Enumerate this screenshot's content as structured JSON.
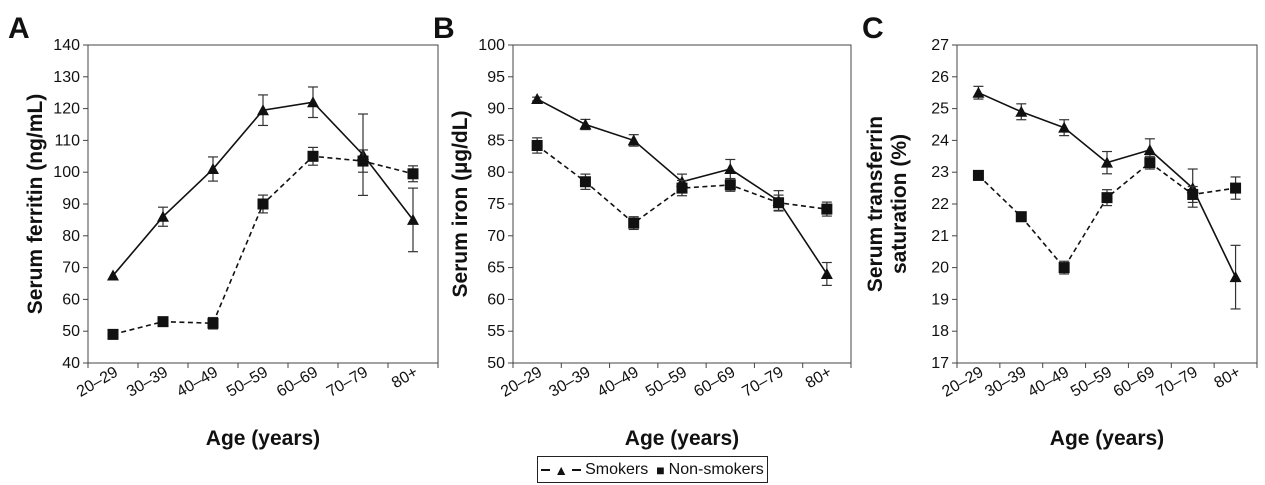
{
  "legend": {
    "smokers_label": "Smokers",
    "nonsmokers_label": "Non-smokers"
  },
  "chart_data": [
    {
      "type": "line",
      "panel_label": "A",
      "categories": [
        "20–29",
        "30–39",
        "40–49",
        "50–59",
        "60–69",
        "70–79",
        "80+"
      ],
      "xlabel": "Age (years)",
      "ylabel": "Serum ferritin (ng/mL)",
      "ylim": [
        40,
        140
      ],
      "yticks": [
        40,
        50,
        60,
        70,
        80,
        90,
        100,
        110,
        120,
        130,
        140
      ],
      "series": [
        {
          "name": "Smokers",
          "marker": "triangle",
          "line_style": "solid",
          "values": [
            67.5,
            86,
            101,
            119.5,
            122,
            105.5,
            85
          ],
          "errors": [
            0,
            3,
            3.8,
            4.8,
            4.8,
            12.8,
            10
          ]
        },
        {
          "name": "Non-smokers",
          "marker": "square",
          "line_style": "dashed",
          "values": [
            49,
            53,
            52.5,
            90,
            105,
            103.5,
            99.5
          ],
          "errors": [
            1,
            1.2,
            1.8,
            2.8,
            2.8,
            3.5,
            2.5
          ]
        }
      ]
    },
    {
      "type": "line",
      "panel_label": "B",
      "categories": [
        "20–29",
        "30–39",
        "40–49",
        "50–59",
        "60–69",
        "70–79",
        "80+"
      ],
      "xlabel": "Age (years)",
      "ylabel": "Serum iron (µg/dL)",
      "ylim": [
        50,
        100
      ],
      "yticks": [
        50,
        55,
        60,
        65,
        70,
        75,
        80,
        85,
        90,
        95,
        100
      ],
      "series": [
        {
          "name": "Smokers",
          "marker": "triangle",
          "line_style": "solid",
          "values": [
            91.5,
            87.5,
            85,
            78.5,
            80.5,
            75.5,
            64
          ],
          "errors": [
            0.3,
            0.8,
            0.9,
            1.2,
            1.5,
            1.6,
            1.8
          ]
        },
        {
          "name": "Non-smokers",
          "marker": "square",
          "line_style": "dashed",
          "values": [
            84.2,
            78.5,
            72,
            77.5,
            78,
            75.2,
            74.2
          ],
          "errors": [
            1.2,
            1.2,
            1.0,
            1.2,
            1.0,
            1.2,
            1.1
          ]
        }
      ]
    },
    {
      "type": "line",
      "panel_label": "C",
      "categories": [
        "20–29",
        "30–39",
        "40–49",
        "50–59",
        "60–69",
        "70–79",
        "80+"
      ],
      "xlabel": "Age (years)",
      "ylabel_lines": [
        "Serum transferrin",
        "saturation (%)"
      ],
      "ylim": [
        17,
        27
      ],
      "yticks": [
        17,
        18,
        19,
        20,
        21,
        22,
        23,
        24,
        25,
        26,
        27
      ],
      "series": [
        {
          "name": "Smokers",
          "marker": "triangle",
          "line_style": "solid",
          "values": [
            25.5,
            24.9,
            24.4,
            23.3,
            23.7,
            22.5,
            19.7
          ],
          "errors": [
            0.2,
            0.25,
            0.25,
            0.35,
            0.35,
            0.6,
            1.0
          ]
        },
        {
          "name": "Non-smokers",
          "marker": "square",
          "line_style": "dashed",
          "values": [
            22.9,
            21.6,
            20.0,
            22.2,
            23.3,
            22.3,
            22.5
          ],
          "errors": [
            0.15,
            0.15,
            0.2,
            0.25,
            0.2,
            0.25,
            0.35
          ]
        }
      ]
    }
  ]
}
